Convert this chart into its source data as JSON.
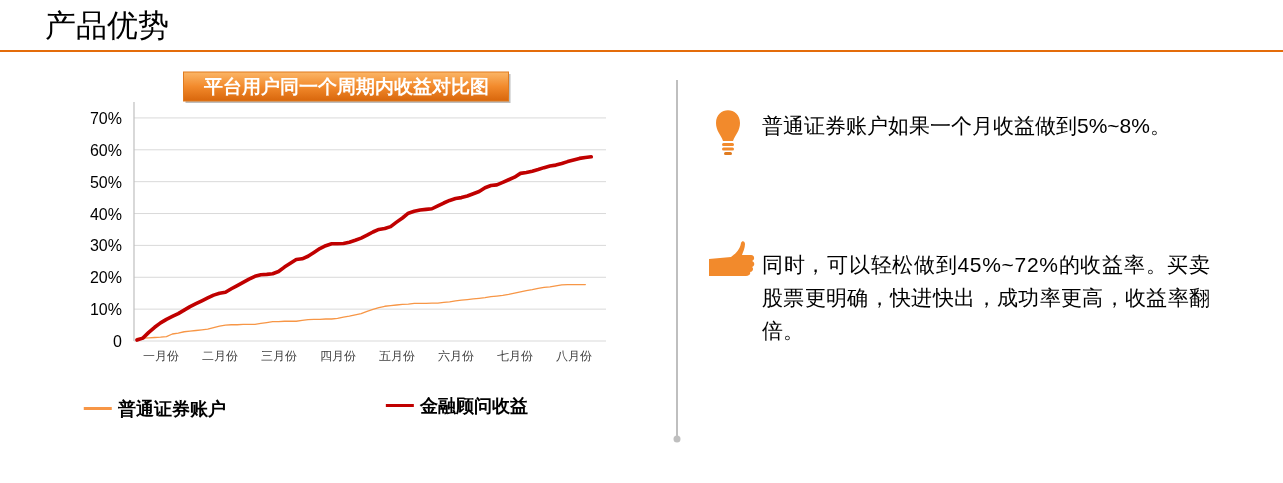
{
  "chart_data": {
    "type": "line",
    "title": "平台用户同一个周期内收益对比图",
    "annotations": [
      "产品优势",
      "普通证券账户如果一个月收益做到5%~8%。",
      "同时，可以轻松做到45%~72%的收益率。买卖股票更明确，快进快出，成功率更高，收益率翻倍。"
    ],
    "categories": [
      null,
      null,
      null,
      null,
      "一月份",
      null,
      null,
      null,
      null,
      null,
      null,
      null,
      null,
      null,
      "二月份",
      null,
      null,
      null,
      null,
      null,
      null,
      null,
      null,
      null,
      "三月份",
      null,
      null,
      null,
      null,
      null,
      null,
      null,
      null,
      null,
      "四月份",
      null,
      null,
      null,
      null,
      null,
      null,
      null,
      null,
      null,
      "五月份",
      null,
      null,
      null,
      null,
      null,
      null,
      null,
      null,
      null,
      "六月份",
      null,
      null,
      null,
      null,
      null,
      null,
      null,
      null,
      null,
      "七月份",
      null,
      null,
      null,
      null,
      null,
      null,
      null,
      null,
      null,
      "八月份",
      null,
      null,
      null
    ],
    "ylim": [
      0,
      75
    ],
    "yticks": [
      0,
      {
        "value": 10,
        "label": "10%"
      },
      {
        "value": 20,
        "label": "20%"
      },
      {
        "value": 30,
        "label": "30%"
      },
      {
        "value": 40,
        "label": "40%"
      },
      {
        "value": 50,
        "label": "50%"
      },
      {
        "value": 60,
        "label": "60%"
      },
      {
        "value": 70,
        "label": "70%"
      }
    ],
    "grid": "y",
    "legend": "bottom",
    "series": [
      {
        "name": "普通证券账户",
        "color": "#f79646",
        "values": [
          0.8,
          0.9,
          1.0,
          1.1,
          1.2,
          1.4,
          2.2,
          2.5,
          2.9,
          3.1,
          3.3,
          3.5,
          3.7,
          4.2,
          4.7,
          5.0,
          5.1,
          5.1,
          5.2,
          5.2,
          5.2,
          5.5,
          5.8,
          6.1,
          6.1,
          6.2,
          6.2,
          6.2,
          6.5,
          6.7,
          6.8,
          6.8,
          6.9,
          6.9,
          7.1,
          7.5,
          7.8,
          8.2,
          8.6,
          9.3,
          9.9,
          10.5,
          10.9,
          11.1,
          11.3,
          11.5,
          11.6,
          11.8,
          11.8,
          11.8,
          11.9,
          11.9,
          12.1,
          12.3,
          12.6,
          12.8,
          13.0,
          13.2,
          13.4,
          13.6,
          13.9,
          14.1,
          14.3,
          14.6,
          15.0,
          15.4,
          15.8,
          16.1,
          16.5,
          16.8,
          17.0,
          17.3,
          17.6,
          17.7,
          17.7,
          17.7,
          17.7,
          null
        ]
      },
      {
        "name": "金融顾问收益",
        "color": "#c00000",
        "values": [
          0.3,
          0.9,
          2.7,
          4.3,
          5.7,
          6.8,
          7.7,
          8.6,
          9.7,
          10.8,
          11.7,
          12.6,
          13.5,
          14.4,
          15.0,
          15.3,
          16.4,
          17.4,
          18.4,
          19.4,
          20.3,
          20.8,
          20.9,
          21.1,
          21.8,
          23.2,
          24.4,
          25.6,
          25.8,
          26.6,
          27.8,
          29.0,
          29.9,
          30.5,
          30.5,
          30.6,
          31.0,
          31.6,
          32.3,
          33.2,
          34.2,
          35.0,
          35.3,
          35.9,
          37.3,
          38.6,
          40.1,
          40.7,
          41.1,
          41.3,
          41.5,
          42.4,
          43.3,
          44.1,
          44.7,
          45.0,
          45.5,
          46.2,
          46.9,
          48.1,
          48.8,
          49.0,
          49.8,
          50.6,
          51.4,
          52.6,
          52.9,
          53.3,
          53.8,
          54.4,
          54.9,
          55.2,
          55.7,
          56.3,
          56.8,
          57.3,
          57.6,
          57.8
        ]
      }
    ]
  }
}
